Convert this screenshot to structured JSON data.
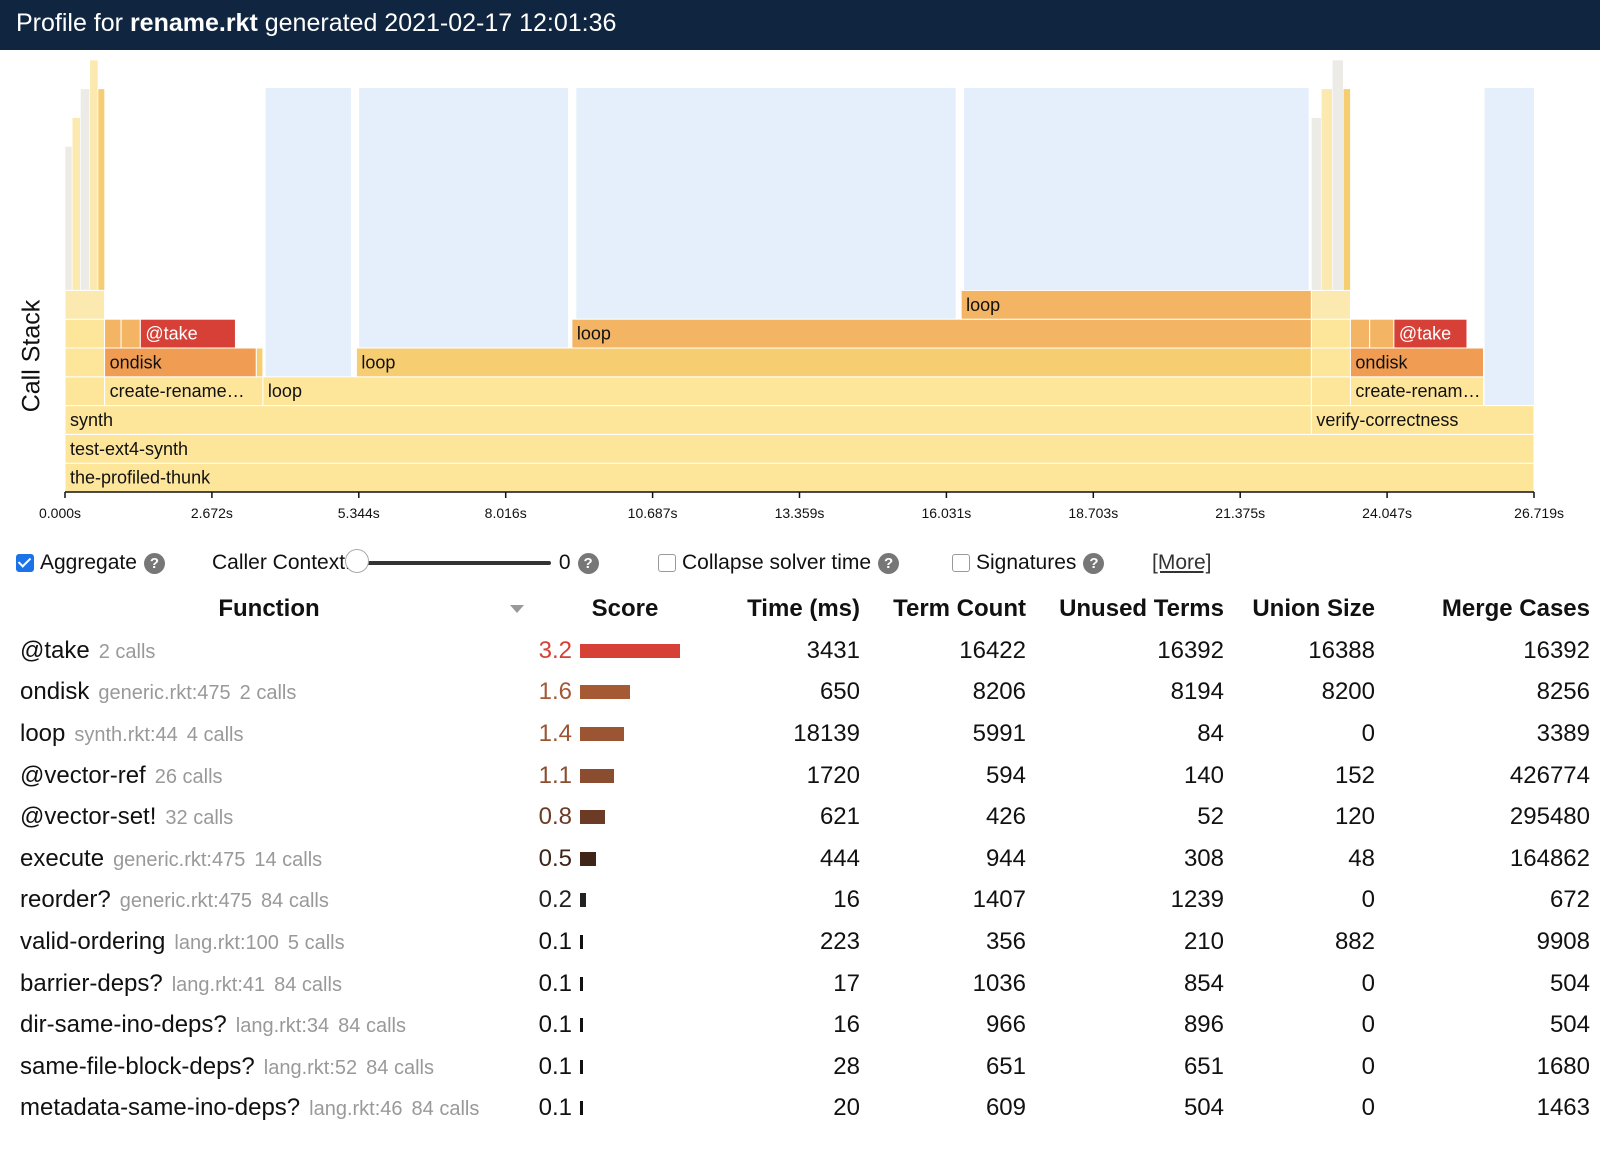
{
  "header": {
    "prefix": "Profile for",
    "file": "rename.rkt",
    "suffix": "generated 2021-02-17 12:01:36"
  },
  "flame": {
    "y_label": "Call Stack",
    "axis_ticks": [
      "0.000s",
      "2.672s",
      "5.344s",
      "8.016s",
      "10.687s",
      "13.359s",
      "16.031s",
      "18.703s",
      "21.375s",
      "24.047s",
      "26.719s"
    ],
    "total_seconds": 26.719,
    "colors": {
      "base": "#fde59a",
      "light": "#fbe9b0",
      "mid": "#f7cd72",
      "orange": "#f3b463",
      "ondisk": "#f09c52",
      "take": "#d64037",
      "solver": "#e4effb",
      "gray": "#ecebe6"
    },
    "frames": [
      {
        "label": "the-profiled-thunk",
        "start": 0.0,
        "end": 26.719,
        "depth": 0,
        "color": "base"
      },
      {
        "label": "test-ext4-synth",
        "start": 0.0,
        "end": 26.719,
        "depth": 1,
        "color": "base"
      },
      {
        "label": "synth",
        "start": 0.0,
        "end": 22.67,
        "depth": 2,
        "color": "base"
      },
      {
        "label": "verify-correctness",
        "start": 22.67,
        "end": 26.719,
        "depth": 2,
        "color": "base"
      },
      {
        "label": "",
        "start": 0.0,
        "end": 0.72,
        "depth": 3,
        "color": "base"
      },
      {
        "label": "create-rename…",
        "start": 0.72,
        "end": 3.6,
        "depth": 3,
        "color": "base"
      },
      {
        "label": "loop",
        "start": 3.6,
        "end": 22.67,
        "depth": 3,
        "color": "base"
      },
      {
        "label": "",
        "start": 22.67,
        "end": 23.38,
        "depth": 3,
        "color": "base"
      },
      {
        "label": "create-renam…",
        "start": 23.38,
        "end": 25.8,
        "depth": 3,
        "color": "base"
      },
      {
        "label": "",
        "start": 0.0,
        "end": 0.72,
        "depth": 4,
        "color": "base"
      },
      {
        "label": "ondisk",
        "start": 0.72,
        "end": 3.48,
        "depth": 4,
        "color": "ondisk"
      },
      {
        "label": "",
        "start": 3.48,
        "end": 3.6,
        "depth": 4,
        "color": "mid"
      },
      {
        "label": "loop",
        "start": 5.3,
        "end": 22.67,
        "depth": 4,
        "color": "mid"
      },
      {
        "label": "",
        "start": 22.67,
        "end": 23.38,
        "depth": 4,
        "color": "base"
      },
      {
        "label": "ondisk",
        "start": 23.38,
        "end": 25.8,
        "depth": 4,
        "color": "ondisk"
      },
      {
        "label": "",
        "start": 0.0,
        "end": 0.72,
        "depth": 5,
        "color": "base"
      },
      {
        "label": "",
        "start": 0.72,
        "end": 1.02,
        "depth": 5,
        "color": "orange"
      },
      {
        "label": "",
        "start": 1.02,
        "end": 1.37,
        "depth": 5,
        "color": "orange"
      },
      {
        "label": "@take",
        "start": 1.37,
        "end": 3.1,
        "depth": 5,
        "color": "take"
      },
      {
        "label": "loop",
        "start": 9.22,
        "end": 22.67,
        "depth": 5,
        "color": "orange"
      },
      {
        "label": "",
        "start": 22.67,
        "end": 23.38,
        "depth": 5,
        "color": "base"
      },
      {
        "label": "",
        "start": 23.38,
        "end": 23.73,
        "depth": 5,
        "color": "orange"
      },
      {
        "label": "",
        "start": 23.73,
        "end": 24.17,
        "depth": 5,
        "color": "orange"
      },
      {
        "label": "@take",
        "start": 24.17,
        "end": 25.5,
        "depth": 5,
        "color": "take"
      },
      {
        "label": "",
        "start": 0.0,
        "end": 0.72,
        "depth": 6,
        "color": "light"
      },
      {
        "label": "loop",
        "start": 16.3,
        "end": 22.67,
        "depth": 6,
        "color": "orange"
      },
      {
        "label": "",
        "start": 22.67,
        "end": 23.38,
        "depth": 6,
        "color": "light"
      }
    ],
    "solver_blocks": [
      {
        "start": 3.65,
        "end": 5.2
      },
      {
        "start": 5.35,
        "end": 9.15
      },
      {
        "start": 9.3,
        "end": 16.2
      },
      {
        "start": 16.35,
        "end": 22.62
      },
      {
        "start": 25.82,
        "end": 26.719
      }
    ],
    "spikes": [
      {
        "start": 0.0,
        "end": 0.13,
        "top_depth": 11,
        "color": "gray"
      },
      {
        "start": 0.13,
        "end": 0.28,
        "top_depth": 12,
        "color": "light"
      },
      {
        "start": 0.28,
        "end": 0.45,
        "top_depth": 13,
        "color": "gray"
      },
      {
        "start": 0.45,
        "end": 0.6,
        "top_depth": 14,
        "color": "light"
      },
      {
        "start": 0.6,
        "end": 0.72,
        "top_depth": 13,
        "color": "mid"
      },
      {
        "start": 22.67,
        "end": 22.85,
        "top_depth": 12,
        "color": "gray"
      },
      {
        "start": 22.85,
        "end": 23.05,
        "top_depth": 13,
        "color": "light"
      },
      {
        "start": 23.05,
        "end": 23.25,
        "top_depth": 14,
        "color": "gray"
      },
      {
        "start": 23.25,
        "end": 23.38,
        "top_depth": 13,
        "color": "mid"
      }
    ]
  },
  "controls": {
    "aggregate": {
      "label": "Aggregate",
      "checked": true
    },
    "caller_context": {
      "label": "Caller Context:",
      "value": "0"
    },
    "collapse_solver": {
      "label": "Collapse solver time",
      "checked": false
    },
    "signatures": {
      "label": "Signatures",
      "checked": false
    },
    "more": "[More]",
    "help_glyph": "?"
  },
  "table": {
    "headers": {
      "function": "Function",
      "score": "Score",
      "time": "Time (ms)",
      "term_count": "Term Count",
      "unused_terms": "Unused Terms",
      "union_size": "Union Size",
      "merge_cases": "Merge Cases"
    },
    "max_score": 3.2,
    "rows": [
      {
        "name": "@take",
        "location": "",
        "calls": "2 calls",
        "score": "3.2",
        "score_num": 3.2,
        "score_color": "#d64037",
        "time": "3431",
        "term_count": "16422",
        "unused_terms": "16392",
        "union_size": "16388",
        "merge_cases": "16392"
      },
      {
        "name": "ondisk",
        "location": "generic.rkt:475",
        "calls": "2 calls",
        "score": "1.6",
        "score_num": 1.6,
        "score_color": "#a55a33",
        "time": "650",
        "term_count": "8206",
        "unused_terms": "8194",
        "union_size": "8200",
        "merge_cases": "8256"
      },
      {
        "name": "loop",
        "location": "synth.rkt:44",
        "calls": "4 calls",
        "score": "1.4",
        "score_num": 1.4,
        "score_color": "#9c5532",
        "time": "18139",
        "term_count": "5991",
        "unused_terms": "84",
        "union_size": "0",
        "merge_cases": "3389"
      },
      {
        "name": "@vector-ref",
        "location": "",
        "calls": "26 calls",
        "score": "1.1",
        "score_num": 1.1,
        "score_color": "#8a4d2f",
        "time": "1720",
        "term_count": "594",
        "unused_terms": "140",
        "union_size": "152",
        "merge_cases": "426774"
      },
      {
        "name": "@vector-set!",
        "location": "",
        "calls": "32 calls",
        "score": "0.8",
        "score_num": 0.8,
        "score_color": "#6b3b25",
        "time": "621",
        "term_count": "426",
        "unused_terms": "52",
        "union_size": "120",
        "merge_cases": "295480"
      },
      {
        "name": "execute",
        "location": "generic.rkt:475",
        "calls": "14 calls",
        "score": "0.5",
        "score_num": 0.5,
        "score_color": "#3f2418",
        "time": "444",
        "term_count": "944",
        "unused_terms": "308",
        "union_size": "48",
        "merge_cases": "164862"
      },
      {
        "name": "reorder?",
        "location": "generic.rkt:475",
        "calls": "84 calls",
        "score": "0.2",
        "score_num": 0.2,
        "score_color": "#222222",
        "time": "16",
        "term_count": "1407",
        "unused_terms": "1239",
        "union_size": "0",
        "merge_cases": "672"
      },
      {
        "name": "valid-ordering",
        "location": "lang.rkt:100",
        "calls": "5 calls",
        "score": "0.1",
        "score_num": 0.1,
        "score_color": "#111111",
        "time": "223",
        "term_count": "356",
        "unused_terms": "210",
        "union_size": "882",
        "merge_cases": "9908"
      },
      {
        "name": "barrier-deps?",
        "location": "lang.rkt:41",
        "calls": "84 calls",
        "score": "0.1",
        "score_num": 0.1,
        "score_color": "#111111",
        "time": "17",
        "term_count": "1036",
        "unused_terms": "854",
        "union_size": "0",
        "merge_cases": "504"
      },
      {
        "name": "dir-same-ino-deps?",
        "location": "lang.rkt:34",
        "calls": "84 calls",
        "score": "0.1",
        "score_num": 0.1,
        "score_color": "#111111",
        "time": "16",
        "term_count": "966",
        "unused_terms": "896",
        "union_size": "0",
        "merge_cases": "504"
      },
      {
        "name": "same-file-block-deps?",
        "location": "lang.rkt:52",
        "calls": "84 calls",
        "score": "0.1",
        "score_num": 0.1,
        "score_color": "#111111",
        "time": "28",
        "term_count": "651",
        "unused_terms": "651",
        "union_size": "0",
        "merge_cases": "1680"
      },
      {
        "name": "metadata-same-ino-deps?",
        "location": "lang.rkt:46",
        "calls": "84 calls",
        "score": "0.1",
        "score_num": 0.1,
        "score_color": "#111111",
        "time": "20",
        "term_count": "609",
        "unused_terms": "504",
        "union_size": "0",
        "merge_cases": "1463"
      }
    ]
  }
}
